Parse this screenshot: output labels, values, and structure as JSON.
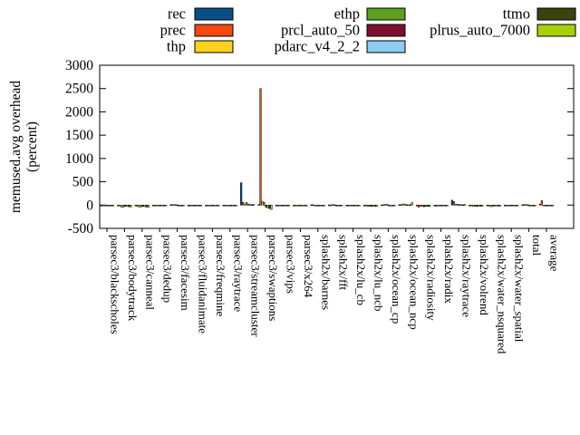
{
  "chart_data": {
    "type": "bar",
    "title": "",
    "ylabel_lines": [
      "memused.avg overhead",
      "(percent)"
    ],
    "xlabel": "",
    "ylim": [
      -500,
      3000
    ],
    "yticks": [
      3000,
      2500,
      2000,
      1500,
      1000,
      500,
      0,
      -500
    ],
    "grid": false,
    "legend_position": "top",
    "categories": [
      "parsec3/blackscholes",
      "parsec3/bodytrack",
      "parsec3/canneal",
      "parsec3/dedup",
      "parsec3/facesim",
      "parsec3/fluidanimate",
      "parsec3/freqmine",
      "parsec3/raytrace",
      "parsec3/streamcluster",
      "parsec3/swaptions",
      "parsec3/vips",
      "parsec3/x264",
      "splash2x/barnes",
      "splash2x/fft",
      "splash2x/lu_cb",
      "splash2x/lu_ncb",
      "splash2x/ocean_cp",
      "splash2x/ocean_ncp",
      "splash2x/radiosity",
      "splash2x/radix",
      "splash2x/raytrace",
      "splash2x/volrend",
      "splash2x/water_nsquared",
      "splash2x/water_spatial",
      "total",
      "average"
    ],
    "series": [
      {
        "name": "rec",
        "color": "#0a4e87",
        "values": [
          -5,
          -15,
          -12,
          -4,
          10,
          -8,
          -5,
          -6,
          480,
          15,
          -10,
          -6,
          8,
          5,
          -6,
          -10,
          6,
          10,
          -12,
          -8,
          105,
          -12,
          -10,
          -4,
          8,
          22
        ]
      },
      {
        "name": "prec",
        "color": "#f5490f",
        "values": [
          -6,
          -20,
          -25,
          -5,
          8,
          -10,
          -6,
          -8,
          60,
          2500,
          -12,
          -8,
          6,
          4,
          -8,
          -12,
          8,
          12,
          -45,
          -25,
          75,
          -18,
          -12,
          -5,
          10,
          95
        ]
      },
      {
        "name": "thp",
        "color": "#fcd21c",
        "values": [
          -8,
          -50,
          -45,
          -6,
          12,
          -12,
          -8,
          -10,
          25,
          80,
          -18,
          -10,
          -10,
          10,
          -10,
          -30,
          18,
          25,
          -30,
          -12,
          20,
          -30,
          -35,
          -6,
          12,
          -6
        ]
      },
      {
        "name": "ethp",
        "color": "#5ea11f",
        "values": [
          -6,
          -40,
          -38,
          -5,
          10,
          -10,
          -6,
          -8,
          55,
          60,
          -15,
          -8,
          -8,
          8,
          -8,
          -25,
          15,
          20,
          -25,
          -10,
          18,
          -25,
          -28,
          -5,
          8,
          -5
        ]
      },
      {
        "name": "prcl_auto_50",
        "color": "#7d102e",
        "values": [
          -8,
          -25,
          -30,
          -6,
          -5,
          -12,
          -8,
          -10,
          18,
          -45,
          -15,
          -10,
          -10,
          -6,
          -10,
          -28,
          -8,
          10,
          -35,
          -15,
          12,
          -28,
          -18,
          -6,
          -5,
          -8
        ]
      },
      {
        "name": "pdarc_v4_2_2",
        "color": "#8dcdf0",
        "values": [
          -6,
          -30,
          -35,
          -5,
          -4,
          -10,
          -6,
          -8,
          12,
          -65,
          -12,
          -8,
          -8,
          -5,
          -8,
          -22,
          -6,
          8,
          -28,
          -12,
          10,
          -22,
          -15,
          -5,
          -4,
          -7
        ]
      },
      {
        "name": "ttmo",
        "color": "#3a430b",
        "values": [
          -8,
          -35,
          -40,
          -6,
          -5,
          -12,
          -8,
          -10,
          10,
          -75,
          -15,
          -10,
          -10,
          -6,
          -10,
          -26,
          -8,
          8,
          -30,
          -15,
          8,
          -26,
          -22,
          -6,
          -5,
          -9
        ]
      },
      {
        "name": "plrus_auto_7000",
        "color": "#a9cf08",
        "values": [
          -6,
          -45,
          -48,
          -5,
          -4,
          -10,
          -6,
          -8,
          15,
          -95,
          -12,
          -8,
          -8,
          -5,
          -8,
          -24,
          -6,
          55,
          -32,
          -12,
          14,
          -24,
          -25,
          -5,
          -4,
          -6
        ]
      }
    ],
    "legend_columns": [
      [
        0,
        1,
        2
      ],
      [
        3,
        4,
        5
      ],
      [
        6,
        7
      ]
    ]
  },
  "colors": {
    "background": "#ffffff",
    "axis": "#000000",
    "text": "#000000"
  }
}
